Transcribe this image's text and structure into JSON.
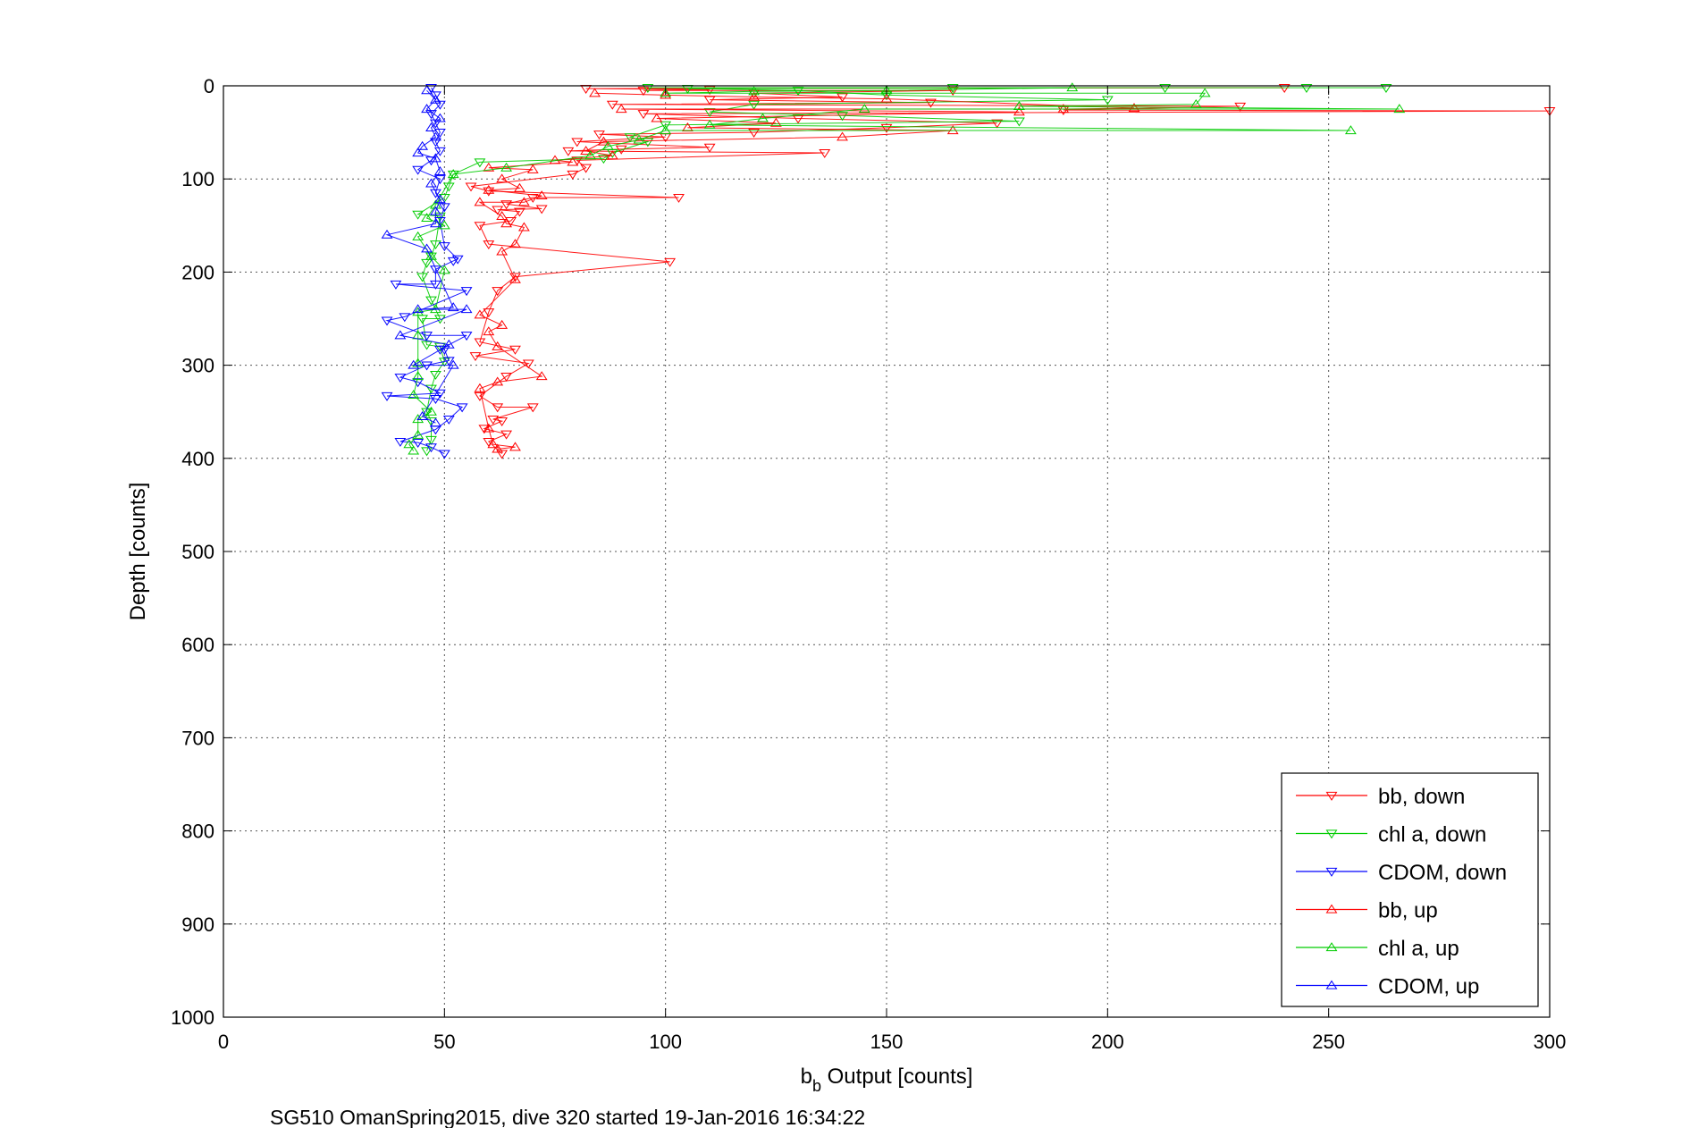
{
  "chart_data": {
    "type": "scatter",
    "title": "",
    "xlabel_main": "b",
    "xlabel_sub": "b",
    "xlabel_rest": " Output [counts]",
    "ylabel": "Depth [counts]",
    "footer": "SG510 OmanSpring2015, dive 320 started 19-Jan-2016 16:34:22",
    "xlim": [
      0,
      300
    ],
    "ylim": [
      0,
      1000
    ],
    "y_reversed": true,
    "grid": true,
    "legend_position": "bottom-right",
    "x_ticks": [
      "0",
      "50",
      "100",
      "150",
      "200",
      "250",
      "300"
    ],
    "y_ticks": [
      "0",
      "100",
      "200",
      "300",
      "400",
      "500",
      "600",
      "700",
      "800",
      "900",
      "1000"
    ],
    "series": [
      {
        "name": "bb, down",
        "color": "#ff0000",
        "marker": "triangle-down",
        "points": [
          [
            82,
            3
          ],
          [
            95,
            5
          ],
          [
            110,
            4
          ],
          [
            165,
            5
          ],
          [
            240,
            2
          ],
          [
            120,
            8
          ],
          [
            140,
            12
          ],
          [
            190,
            26
          ],
          [
            300,
            27
          ],
          [
            230,
            22
          ],
          [
            160,
            18
          ],
          [
            110,
            15
          ],
          [
            88,
            20
          ],
          [
            95,
            30
          ],
          [
            130,
            35
          ],
          [
            175,
            40
          ],
          [
            150,
            45
          ],
          [
            120,
            50
          ],
          [
            100,
            55
          ],
          [
            85,
            52
          ],
          [
            80,
            60
          ],
          [
            78,
            70
          ],
          [
            90,
            68
          ],
          [
            136,
            72
          ],
          [
            110,
            66
          ],
          [
            80,
            80
          ],
          [
            82,
            88
          ],
          [
            79,
            95
          ],
          [
            103,
            120
          ],
          [
            101,
            189
          ],
          [
            64,
            127
          ],
          [
            70,
            120
          ],
          [
            58,
            150
          ],
          [
            60,
            170
          ],
          [
            66,
            205
          ],
          [
            62,
            220
          ],
          [
            60,
            243
          ],
          [
            58,
            275
          ],
          [
            64,
            312
          ],
          [
            62,
            345
          ],
          [
            69,
            298
          ],
          [
            66,
            283
          ],
          [
            57,
            290
          ],
          [
            58,
            333
          ],
          [
            70,
            345
          ],
          [
            61,
            358
          ],
          [
            59,
            368
          ],
          [
            60,
            382
          ],
          [
            63,
            395
          ],
          [
            64,
            374
          ],
          [
            63,
            360
          ],
          [
            67,
            135
          ],
          [
            72,
            132
          ],
          [
            62,
            133
          ],
          [
            60,
            113
          ],
          [
            56,
            108
          ],
          [
            65,
            145
          ]
        ]
      },
      {
        "name": "chl a, down",
        "color": "#00cc00",
        "marker": "triangle-down",
        "points": [
          [
            96,
            2
          ],
          [
            105,
            3
          ],
          [
            165,
            2
          ],
          [
            245,
            2
          ],
          [
            263,
            2
          ],
          [
            213,
            2
          ],
          [
            130,
            5
          ],
          [
            150,
            10
          ],
          [
            200,
            15
          ],
          [
            120,
            20
          ],
          [
            110,
            28
          ],
          [
            140,
            32
          ],
          [
            180,
            38
          ],
          [
            100,
            42
          ],
          [
            92,
            55
          ],
          [
            96,
            60
          ],
          [
            88,
            72
          ],
          [
            86,
            78
          ],
          [
            58,
            82
          ],
          [
            52,
            95
          ],
          [
            51,
            108
          ],
          [
            50,
            120
          ],
          [
            49,
            140
          ],
          [
            48,
            170
          ],
          [
            46,
            190
          ],
          [
            45,
            205
          ],
          [
            47,
            230
          ],
          [
            49,
            250
          ],
          [
            49,
            280
          ],
          [
            50,
            296
          ],
          [
            48,
            310
          ],
          [
            47,
            325
          ],
          [
            46,
            350
          ],
          [
            47,
            360
          ],
          [
            47,
            380
          ],
          [
            46,
            392
          ],
          [
            44,
            138
          ],
          [
            47,
            183
          ],
          [
            45,
            250
          ],
          [
            46,
            278
          ]
        ]
      },
      {
        "name": "CDOM, down",
        "color": "#0000ff",
        "marker": "triangle-down",
        "points": [
          [
            47,
            2
          ],
          [
            48,
            10
          ],
          [
            49,
            20
          ],
          [
            47,
            30
          ],
          [
            48,
            40
          ],
          [
            49,
            50
          ],
          [
            48,
            60
          ],
          [
            49,
            70
          ],
          [
            47,
            80
          ],
          [
            44,
            90
          ],
          [
            49,
            100
          ],
          [
            48,
            115
          ],
          [
            50,
            130
          ],
          [
            49,
            145
          ],
          [
            50,
            172
          ],
          [
            53,
            186
          ],
          [
            48,
            197
          ],
          [
            48,
            213
          ],
          [
            55,
            220
          ],
          [
            39,
            213
          ],
          [
            37,
            252
          ],
          [
            41,
            248
          ],
          [
            46,
            300
          ],
          [
            49,
            283
          ],
          [
            50,
            283
          ],
          [
            51,
            295
          ],
          [
            44,
            318
          ],
          [
            48,
            336
          ],
          [
            54,
            345
          ],
          [
            51,
            358
          ],
          [
            49,
            330
          ],
          [
            40,
            313
          ],
          [
            37,
            333
          ],
          [
            40,
            382
          ],
          [
            44,
            383
          ],
          [
            50,
            395
          ],
          [
            47,
            388
          ],
          [
            48,
            369
          ],
          [
            46,
            268
          ],
          [
            55,
            268
          ],
          [
            52,
            188
          ]
        ]
      },
      {
        "name": "bb, up",
        "color": "#ff0000",
        "marker": "triangle-up",
        "points": [
          [
            84,
            8
          ],
          [
            100,
            10
          ],
          [
            120,
            12
          ],
          [
            150,
            14
          ],
          [
            190,
            25
          ],
          [
            206,
            24
          ],
          [
            180,
            28
          ],
          [
            165,
            48
          ],
          [
            140,
            55
          ],
          [
            125,
            40
          ],
          [
            105,
            45
          ],
          [
            98,
            35
          ],
          [
            90,
            25
          ],
          [
            86,
            60
          ],
          [
            82,
            70
          ],
          [
            88,
            75
          ],
          [
            79,
            82
          ],
          [
            75,
            80
          ],
          [
            70,
            90
          ],
          [
            60,
            88
          ],
          [
            63,
            100
          ],
          [
            67,
            110
          ],
          [
            72,
            118
          ],
          [
            68,
            125
          ],
          [
            63,
            140
          ],
          [
            64,
            148
          ],
          [
            68,
            152
          ],
          [
            60,
            112
          ],
          [
            58,
            125
          ],
          [
            63,
            178
          ],
          [
            66,
            208
          ],
          [
            63,
            257
          ],
          [
            58,
            246
          ],
          [
            60,
            264
          ],
          [
            62,
            280
          ],
          [
            62,
            318
          ],
          [
            72,
            312
          ],
          [
            58,
            325
          ],
          [
            66,
            388
          ],
          [
            62,
            390
          ],
          [
            60,
            368
          ],
          [
            61,
            385
          ],
          [
            66,
            170
          ]
        ]
      },
      {
        "name": "chl a, up",
        "color": "#00cc00",
        "marker": "triangle-up",
        "points": [
          [
            100,
            8
          ],
          [
            120,
            6
          ],
          [
            150,
            5
          ],
          [
            192,
            2
          ],
          [
            222,
            8
          ],
          [
            266,
            25
          ],
          [
            255,
            48
          ],
          [
            220,
            20
          ],
          [
            180,
            22
          ],
          [
            145,
            25
          ],
          [
            122,
            35
          ],
          [
            110,
            42
          ],
          [
            100,
            48
          ],
          [
            94,
            58
          ],
          [
            87,
            65
          ],
          [
            83,
            75
          ],
          [
            64,
            88
          ],
          [
            52,
            95
          ],
          [
            48,
            128
          ],
          [
            46,
            142
          ],
          [
            44,
            162
          ],
          [
            47,
            183
          ],
          [
            50,
            198
          ],
          [
            48,
            240
          ],
          [
            44,
            243
          ],
          [
            44,
            268
          ],
          [
            44,
            298
          ],
          [
            44,
            312
          ],
          [
            43,
            332
          ],
          [
            44,
            358
          ],
          [
            44,
            375
          ],
          [
            42,
            385
          ],
          [
            43,
            392
          ],
          [
            47,
            350
          ],
          [
            50,
            150
          ]
        ]
      },
      {
        "name": "CDOM, up",
        "color": "#0000ff",
        "marker": "triangle-up",
        "points": [
          [
            46,
            5
          ],
          [
            48,
            15
          ],
          [
            46,
            25
          ],
          [
            49,
            35
          ],
          [
            47,
            45
          ],
          [
            48,
            55
          ],
          [
            45,
            65
          ],
          [
            44,
            72
          ],
          [
            48,
            78
          ],
          [
            49,
            92
          ],
          [
            47,
            105
          ],
          [
            49,
            122
          ],
          [
            48,
            135
          ],
          [
            48,
            148
          ],
          [
            37,
            160
          ],
          [
            46,
            175
          ],
          [
            52,
            238
          ],
          [
            44,
            240
          ],
          [
            40,
            268
          ],
          [
            51,
            278
          ],
          [
            43,
            300
          ],
          [
            52,
            300
          ],
          [
            45,
            355
          ],
          [
            48,
            362
          ],
          [
            55,
            240
          ]
        ]
      }
    ]
  }
}
